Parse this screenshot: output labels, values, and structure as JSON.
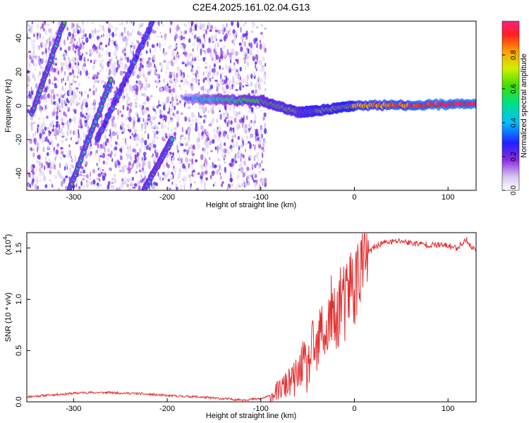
{
  "figure": {
    "title": "C2E4.2025.161.02.04.G13"
  },
  "chart_data": [
    {
      "type": "heatmap",
      "xlabel": "Height of straight line (km)",
      "ylabel": "Frequency (Hz)",
      "xlim": [
        -350,
        130
      ],
      "ylim": [
        -50,
        50
      ],
      "x_ticks": [
        -300,
        -200,
        -100,
        0,
        100
      ],
      "y_ticks": [
        -40,
        -20,
        0,
        20,
        40
      ],
      "colorbar": {
        "label": "Normalized spectral amplitude",
        "range": [
          0,
          1
        ],
        "ticks": [
          0.0,
          0.2,
          0.4,
          0.6,
          0.8
        ],
        "tick_labels": [
          "0.0",
          "0.2",
          "0.4",
          "0.6",
          "0.8"
        ]
      },
      "features": [
        {
          "kind": "diagonal-trace",
          "x": [
            -345,
            -310
          ],
          "y": [
            -5,
            50
          ],
          "peak_amplitude": 0.5
        },
        {
          "kind": "diagonal-trace",
          "x": [
            -305,
            -260
          ],
          "y": [
            -50,
            15
          ],
          "peak_amplitude": 0.5
        },
        {
          "kind": "diagonal-trace",
          "x": [
            -275,
            -215
          ],
          "y": [
            -20,
            50
          ],
          "peak_amplitude": 0.35
        },
        {
          "kind": "diagonal-trace",
          "x": [
            -225,
            -195
          ],
          "y": [
            -50,
            -20
          ],
          "peak_amplitude": 0.45
        },
        {
          "kind": "carrier-line",
          "x": [
            -180,
            -100,
            -60,
            -40,
            0,
            130
          ],
          "y": [
            4,
            3,
            -4,
            -3,
            0,
            1
          ],
          "peak_amplitude": 0.95
        }
      ],
      "grid": false
    },
    {
      "type": "line",
      "xlabel": "Height of straight line (km)",
      "ylabel": "SNR (10 * v/v)",
      "y_multiplier": "(x10^4)",
      "xlim": [
        -350,
        130
      ],
      "ylim": [
        0,
        1.65
      ],
      "x_ticks": [
        -300,
        -200,
        -100,
        0,
        100
      ],
      "y_ticks": [
        0.0,
        0.5,
        1.0,
        1.5
      ],
      "y_tick_labels": [
        "0.0",
        "0.5",
        "1.0",
        "1.5"
      ],
      "series": [
        {
          "color": "#e53030",
          "x": [
            -350,
            -320,
            -290,
            -260,
            -230,
            -200,
            -170,
            -140,
            -120,
            -100,
            -90,
            -80,
            -70,
            -60,
            -55,
            -50,
            -45,
            -40,
            -35,
            -30,
            -25,
            -20,
            -15,
            -10,
            -5,
            0,
            5,
            10,
            20,
            30,
            40,
            50,
            60,
            70,
            80,
            90,
            100,
            110,
            115,
            120,
            125,
            130
          ],
          "y": [
            0.05,
            0.07,
            0.09,
            0.09,
            0.08,
            0.06,
            0.05,
            0.03,
            0.02,
            0.03,
            0.06,
            0.12,
            0.18,
            0.25,
            0.4,
            0.28,
            0.55,
            0.45,
            0.75,
            0.6,
            0.9,
            0.7,
            1.05,
            0.9,
            1.15,
            1.1,
            1.3,
            1.4,
            1.5,
            1.55,
            1.56,
            1.57,
            1.55,
            1.54,
            1.53,
            1.53,
            1.52,
            1.5,
            1.55,
            1.58,
            1.5,
            1.49
          ]
        }
      ],
      "grid": false
    }
  ]
}
